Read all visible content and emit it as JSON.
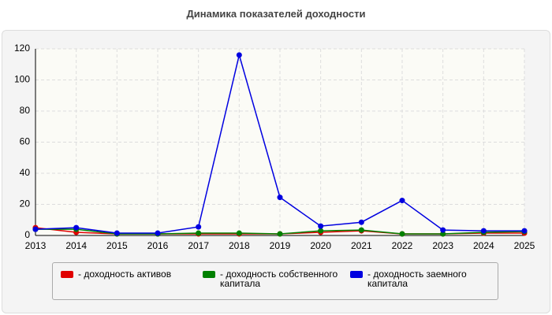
{
  "chart_data": {
    "type": "line",
    "title": "Динамика показателей доходности",
    "x": [
      2013,
      2014,
      2015,
      2016,
      2017,
      2018,
      2019,
      2020,
      2021,
      2022,
      2023,
      2024,
      2025
    ],
    "xlim": [
      2013,
      2025
    ],
    "xticks": [
      2013,
      2014,
      2015,
      2016,
      2017,
      2018,
      2019,
      2020,
      2021,
      2022,
      2023,
      2024,
      2025
    ],
    "ylim": [
      0,
      120
    ],
    "yticks": [
      0,
      20,
      40,
      60,
      80,
      100,
      120
    ],
    "grid": true,
    "legend": "bottom",
    "series": [
      {
        "name": "- доходность активов",
        "color": "#e00000",
        "values": [
          5,
          2,
          1,
          1,
          1,
          1,
          1,
          2,
          3,
          1,
          1,
          1.5,
          1.5
        ]
      },
      {
        "name": "- доходность собственного капитала",
        "color": "#008000",
        "values": [
          4,
          4,
          1,
          1,
          1.5,
          1.5,
          1,
          3,
          3.5,
          1,
          1,
          2,
          2.5
        ]
      },
      {
        "name": "- доходность заемного капитала",
        "color": "#0000e0",
        "values": [
          4,
          5,
          1.5,
          1.5,
          5.5,
          116,
          24.5,
          6,
          8.5,
          22.5,
          3.5,
          3,
          3
        ]
      }
    ]
  }
}
